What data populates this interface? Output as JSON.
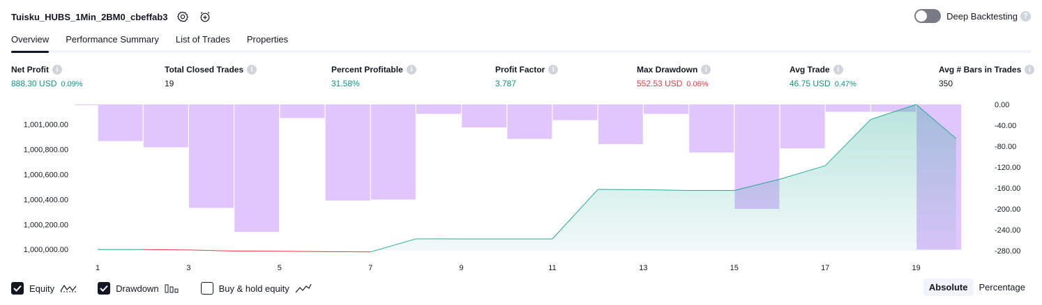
{
  "header": {
    "title": "Tuisku_HUBS_1Min_2BM0_cbeffab3"
  },
  "deep_backtesting": {
    "label": "Deep Backtesting",
    "enabled": false
  },
  "tabs": [
    {
      "label": "Overview",
      "active": true
    },
    {
      "label": "Performance Summary",
      "active": false
    },
    {
      "label": "List of Trades",
      "active": false
    },
    {
      "label": "Properties",
      "active": false
    }
  ],
  "metrics": [
    {
      "label": "Net Profit",
      "value": "888.30 USD",
      "pct": "0.09%",
      "tone": "pos"
    },
    {
      "label": "Total Closed Trades",
      "value": "19",
      "pct": "",
      "tone": "neu"
    },
    {
      "label": "Percent Profitable",
      "value": "31.58%",
      "pct": "",
      "tone": "pos"
    },
    {
      "label": "Profit Factor",
      "value": "3.787",
      "pct": "",
      "tone": "pos"
    },
    {
      "label": "Max Drawdown",
      "value": "552.53 USD",
      "pct": "0.06%",
      "tone": "neg"
    },
    {
      "label": "Avg Trade",
      "value": "46.75 USD",
      "pct": "0.47%",
      "tone": "pos"
    },
    {
      "label": "Avg # Bars in Trades",
      "value": "350",
      "pct": "",
      "tone": "neu"
    }
  ],
  "legend": {
    "equity": {
      "label": "Equity",
      "checked": true
    },
    "drawdown": {
      "label": "Drawdown",
      "checked": true
    },
    "buy_hold": {
      "label": "Buy & hold equity",
      "checked": false
    }
  },
  "mode": {
    "absolute": "Absolute",
    "percentage": "Percentage",
    "active": "absolute"
  },
  "colors": {
    "drawdown_bar": "#e1c5fd",
    "equity_line": "#22ab94",
    "equity_loss_line": "#f23645",
    "equity_fill": "#d0efe6"
  },
  "chart_data": {
    "type": "area",
    "x_ticks": [
      "1",
      "3",
      "5",
      "7",
      "9",
      "11",
      "13",
      "15",
      "17",
      "19"
    ],
    "left_axis": {
      "ticks": [
        "1,000,000.00",
        "1,000,200.00",
        "1,000,400.00",
        "1,000,600.00",
        "1,000,800.00",
        "1,001,000.00"
      ],
      "range": [
        999990,
        1001160
      ]
    },
    "right_axis": {
      "ticks": [
        "0.00",
        "-40.00",
        "-80.00",
        "-120.00",
        "-160.00",
        "-200.00",
        "-240.00",
        "-280.00"
      ],
      "range": [
        -280,
        0
      ]
    },
    "series": [
      {
        "name": "Equity",
        "x": [
          1,
          2,
          3,
          4,
          5,
          6,
          7,
          8,
          9,
          10,
          11,
          12,
          13,
          14,
          15,
          16,
          17,
          18,
          19,
          20
        ],
        "values": [
          1000000,
          1000000,
          999996,
          999987,
          999986,
          999982,
          999980,
          1000085,
          1000084,
          1000084,
          1000084,
          1000480,
          1000478,
          1000472,
          1000472,
          1000562,
          1000670,
          1001040,
          1001160,
          1000888
        ]
      },
      {
        "name": "Drawdown",
        "x": [
          1,
          2,
          3,
          4,
          5,
          6,
          7,
          8,
          9,
          10,
          11,
          12,
          13,
          14,
          15,
          16,
          17,
          18,
          19,
          20
        ],
        "values": [
          -1,
          -70,
          -82,
          -198,
          -244,
          -26,
          -184,
          -182,
          -18,
          -44,
          -66,
          -30,
          -76,
          -18,
          -92,
          -200,
          -84,
          -14,
          -14,
          -278
        ]
      }
    ]
  }
}
